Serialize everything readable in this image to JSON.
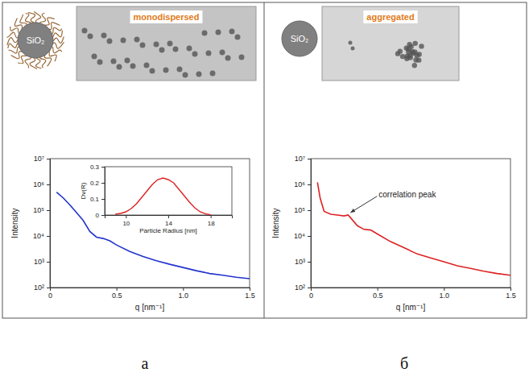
{
  "panels": [
    {
      "letter": "а",
      "icon_text": "SiO₂",
      "image_label": "monodispersed"
    },
    {
      "letter": "б",
      "icon_text": "SiO₂",
      "image_label": "aggregated"
    }
  ],
  "chart_data": [
    {
      "type": "line",
      "xlabel": "q [nm⁻¹]",
      "ylabel": "Intensity",
      "log": "y",
      "color": "#2233cc",
      "x": [
        0.05,
        0.1,
        0.15,
        0.2,
        0.25,
        0.3,
        0.35,
        0.4,
        0.45,
        0.5,
        0.6,
        0.7,
        0.8,
        0.9,
        1.0,
        1.1,
        1.2,
        1.3,
        1.4,
        1.5
      ],
      "values": [
        500000,
        300000,
        160000,
        80000,
        40000,
        15000,
        9000,
        8000,
        6500,
        4500,
        2500,
        1600,
        1100,
        800,
        600,
        450,
        350,
        300,
        250,
        220
      ],
      "xlim": [
        0,
        1.5
      ],
      "xticks": [
        0,
        0.5,
        {
          "value": 1,
          "label": "1.0"
        },
        1.5
      ],
      "ylim": [
        100,
        10000000
      ],
      "yticks": [
        {
          "value": 100,
          "label": "10²"
        },
        {
          "value": 1000,
          "label": "10³"
        },
        {
          "value": 10000,
          "label": "10⁴"
        },
        {
          "value": 100000,
          "label": "10⁵"
        },
        {
          "value": 1000000,
          "label": "10⁶"
        },
        {
          "value": 10000000,
          "label": "10⁷"
        }
      ]
    },
    {
      "type": "line",
      "xlabel": "Particle Radius [nm]",
      "ylabel": "Dv(R)",
      "color": "#dd2222",
      "x": [
        9,
        9.5,
        10,
        10.5,
        11,
        11.5,
        12,
        12.5,
        13,
        13.5,
        14,
        14.5,
        15,
        15.5,
        16,
        16.5,
        17,
        17.5,
        18
      ],
      "values": [
        0.005,
        0.01,
        0.02,
        0.04,
        0.07,
        0.11,
        0.15,
        0.19,
        0.22,
        0.23,
        0.22,
        0.2,
        0.16,
        0.12,
        0.08,
        0.045,
        0.02,
        0.008,
        0.002
      ],
      "xlim": [
        8,
        20
      ],
      "xticks": [
        10,
        14,
        18
      ],
      "ylim": [
        0,
        0.3
      ],
      "yticks": [
        0,
        0.1,
        0.2,
        0.3
      ]
    },
    {
      "type": "line",
      "xlabel": "q [nm⁻¹]",
      "ylabel": "Intensity",
      "log": "y",
      "color": "#dd2222",
      "x": [
        0.05,
        0.07,
        0.1,
        0.15,
        0.2,
        0.25,
        0.28,
        0.3,
        0.35,
        0.4,
        0.45,
        0.5,
        0.6,
        0.7,
        0.8,
        0.9,
        1.0,
        1.1,
        1.2,
        1.3,
        1.4,
        1.5
      ],
      "values": [
        1200000,
        300000,
        90000,
        70000,
        65000,
        60000,
        65000,
        50000,
        25000,
        18000,
        17000,
        12000,
        6000,
        3500,
        2000,
        1400,
        1000,
        700,
        550,
        430,
        350,
        300
      ],
      "xlim": [
        0,
        1.5
      ],
      "xticks": [
        0,
        0.5,
        {
          "value": 1,
          "label": "1.0"
        },
        1.5
      ],
      "ylim": [
        100,
        10000000
      ],
      "yticks": [
        {
          "value": 100,
          "label": "10²"
        },
        {
          "value": 1000,
          "label": "10³"
        },
        {
          "value": 10000,
          "label": "10⁴"
        },
        {
          "value": 100000,
          "label": "10⁵"
        },
        {
          "value": 1000000,
          "label": "10⁶"
        },
        {
          "value": 10000000,
          "label": "10⁷"
        }
      ],
      "annotations": [
        {
          "text": "correlation peak",
          "x": 0.28,
          "y": 65000
        }
      ]
    }
  ]
}
